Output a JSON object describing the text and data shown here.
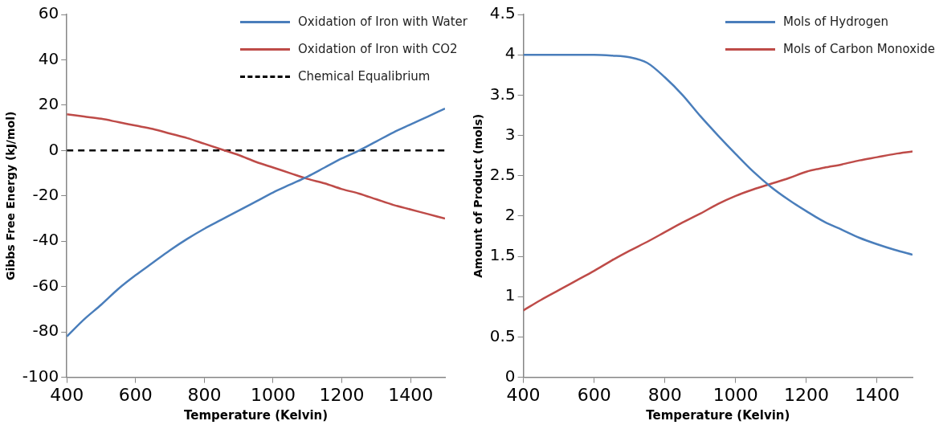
{
  "chart_data": [
    {
      "type": "line",
      "xlabel": "Temperature (Kelvin)",
      "ylabel": "Gibbs Free Energy (kJ/mol)",
      "legend": "top right",
      "marker": "none",
      "xlim": [
        400,
        1500
      ],
      "xticks": [
        400,
        600,
        800,
        1000,
        1200,
        1400
      ],
      "ylim": [
        -100,
        60
      ],
      "yticks": [
        -100,
        -80,
        -60,
        -40,
        -20,
        0,
        20,
        40,
        60
      ],
      "x": [
        400,
        450,
        500,
        550,
        600,
        650,
        700,
        750,
        800,
        850,
        900,
        950,
        1000,
        1050,
        1100,
        1150,
        1200,
        1250,
        1300,
        1350,
        1400,
        1450,
        1500
      ],
      "series": [
        {
          "name": "Oxidation of Iron with Water",
          "color": "#4a7ebb",
          "values": [
            -82,
            -74.5,
            -68,
            -61,
            -55,
            -49.5,
            -44,
            -39,
            -34.5,
            -30.5,
            -26.5,
            -22.5,
            -18.5,
            -15,
            -11.5,
            -7.5,
            -3.5,
            0,
            4,
            8,
            11.5,
            15,
            18.5
          ]
        },
        {
          "name": "Oxidation of Iron with CO2",
          "color": "#be4b48",
          "values": [
            16,
            15,
            14,
            12.5,
            11,
            9.5,
            7.5,
            5.5,
            3,
            0.5,
            -2,
            -5,
            -7.5,
            -10,
            -12.5,
            -14.5,
            -17,
            -19,
            -21.5,
            -24,
            -26,
            -28,
            -30
          ]
        },
        {
          "name": "Chemical Equalibrium",
          "color": "#000000",
          "line_style": "dashed",
          "x": [
            400,
            1500
          ],
          "values": [
            0,
            0
          ]
        }
      ]
    },
    {
      "type": "line",
      "xlabel": "Temperature (Kelvin)",
      "ylabel": "Amount of Product (mols)",
      "legend": "top right",
      "marker": "none",
      "xlim": [
        400,
        1500
      ],
      "xticks": [
        400,
        600,
        800,
        1000,
        1200,
        1400
      ],
      "ylim": [
        0,
        4.5
      ],
      "yticks": [
        0,
        {
          "value": 0.5,
          "label": "0.5"
        },
        1,
        {
          "value": 1.5,
          "label": "1.5"
        },
        2,
        {
          "value": 2.5,
          "label": "2.5"
        },
        3,
        {
          "value": 3.5,
          "label": "3.5"
        },
        4,
        {
          "value": 4.5,
          "label": "4.5"
        }
      ],
      "x": [
        400,
        450,
        500,
        550,
        600,
        650,
        700,
        750,
        800,
        850,
        900,
        950,
        1000,
        1050,
        1100,
        1150,
        1200,
        1250,
        1300,
        1350,
        1400,
        1450,
        1500
      ],
      "series": [
        {
          "name": "Mols of Hydrogen",
          "color": "#4a7ebb",
          "values": [
            4,
            4,
            4,
            4,
            4,
            3.99,
            3.97,
            3.9,
            3.72,
            3.5,
            3.24,
            3,
            2.77,
            2.55,
            2.36,
            2.2,
            2.06,
            1.93,
            1.83,
            1.73,
            1.65,
            1.58,
            1.52
          ]
        },
        {
          "name": "Mols of Carbon Monoxide",
          "color": "#be4b48",
          "values": [
            0.83,
            0.96,
            1.08,
            1.2,
            1.32,
            1.45,
            1.57,
            1.68,
            1.8,
            1.92,
            2.03,
            2.15,
            2.25,
            2.33,
            2.4,
            2.47,
            2.55,
            2.6,
            2.64,
            2.69,
            2.73,
            2.77,
            2.8
          ]
        }
      ]
    }
  ]
}
